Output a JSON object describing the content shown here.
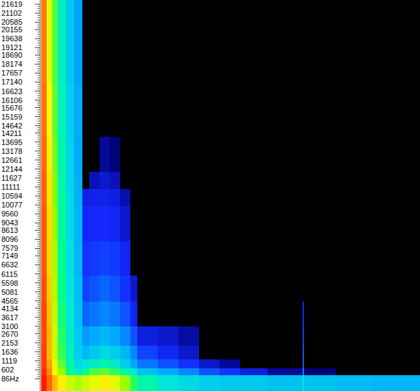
{
  "chart_data": {
    "type": "heatmap",
    "tick_labels": "y",
    "xlim": [
      0,
      552
    ],
    "ylim": [
      -620,
      21860
    ],
    "yticks": [
      21619,
      21102,
      20585,
      20155,
      19638,
      19121,
      18690,
      18174,
      17657,
      17140,
      16623,
      16106,
      15676,
      15159,
      14642,
      14211,
      13695,
      13178,
      12661,
      12144,
      11627,
      11111,
      10594,
      10077,
      9560,
      9043,
      8613,
      8096,
      7579,
      7149,
      6632,
      6115,
      5598,
      5081,
      4565,
      4134,
      3617,
      3100,
      2670,
      2153,
      1636,
      1119,
      602,
      {
        "value": 86,
        "label": "86Hz"
      }
    ],
    "x_bins": [
      0,
      8,
      16,
      24,
      36,
      48,
      60,
      70,
      85,
      100,
      115,
      130,
      140,
      170,
      200,
      230,
      260,
      290,
      330,
      381,
      383,
      430,
      480,
      552
    ],
    "y_bins": [
      -620,
      300,
      700,
      1200,
      2000,
      3100,
      4500,
      6000,
      8000,
      10000,
      11000,
      12000,
      14000,
      17000,
      21860
    ],
    "color_range": [
      0,
      1
    ],
    "cells": [
      [
        0.97,
        0.88,
        0.8,
        0.75,
        0.7,
        0.68,
        0.7,
        0.72,
        0.75,
        0.72,
        0.66,
        0.6,
        0.55,
        0.5,
        0.48,
        0.46,
        0.45,
        0.45,
        0.44,
        0.5,
        0.44,
        0.43,
        0.42
      ],
      [
        0.95,
        0.84,
        0.74,
        0.66,
        0.58,
        0.52,
        0.58,
        0.62,
        0.63,
        0.6,
        0.55,
        0.5,
        0.44,
        0.4,
        0.36,
        0.3,
        0.26,
        0.22,
        0.15,
        0.35,
        0.12,
        0,
        0
      ],
      [
        0.93,
        0.82,
        0.72,
        0.63,
        0.55,
        0.48,
        0.5,
        0.52,
        0.55,
        0.52,
        0.46,
        0.4,
        0.34,
        0.3,
        0.26,
        0.2,
        0.15,
        0,
        0,
        0.3,
        0,
        0,
        0
      ],
      [
        0.93,
        0.8,
        0.7,
        0.61,
        0.53,
        0.46,
        0.42,
        0.45,
        0.48,
        0.46,
        0.42,
        0.36,
        0.28,
        0.24,
        0.2,
        0,
        0,
        0,
        0,
        0.3,
        0,
        0,
        0
      ],
      [
        0.92,
        0.8,
        0.7,
        0.6,
        0.52,
        0.45,
        0.38,
        0.4,
        0.42,
        0.4,
        0.36,
        0.3,
        0.22,
        0.2,
        0.16,
        0,
        0,
        0,
        0,
        0.28,
        0,
        0,
        0
      ],
      [
        0.92,
        0.79,
        0.69,
        0.59,
        0.51,
        0.44,
        0.32,
        0.34,
        0.36,
        0.34,
        0.3,
        0.24,
        0,
        0,
        0,
        0,
        0,
        0,
        0,
        0.25,
        0,
        0,
        0
      ],
      [
        0.91,
        0.78,
        0.68,
        0.58,
        0.5,
        0.43,
        0.28,
        0.3,
        0.32,
        0.3,
        0.26,
        0.2,
        0,
        0,
        0,
        0,
        0,
        0,
        0,
        0,
        0,
        0,
        0
      ],
      [
        0.9,
        0.77,
        0.67,
        0.57,
        0.49,
        0.42,
        0.26,
        0.27,
        0.28,
        0.27,
        0.24,
        0,
        0,
        0,
        0,
        0,
        0,
        0,
        0,
        0,
        0,
        0,
        0
      ],
      [
        0.9,
        0.77,
        0.66,
        0.56,
        0.48,
        0.42,
        0.24,
        0.25,
        0.25,
        0.24,
        0.2,
        0,
        0,
        0,
        0,
        0,
        0,
        0,
        0,
        0,
        0,
        0,
        0
      ],
      [
        0.89,
        0.76,
        0.65,
        0.56,
        0.48,
        0.41,
        0.22,
        0.23,
        0.23,
        0.22,
        0.17,
        0,
        0,
        0,
        0,
        0,
        0,
        0,
        0,
        0,
        0,
        0,
        0
      ],
      [
        0.89,
        0.76,
        0.65,
        0.55,
        0.47,
        0.41,
        0,
        0.18,
        0.2,
        0.18,
        0,
        0,
        0,
        0,
        0,
        0,
        0,
        0,
        0,
        0,
        0,
        0,
        0
      ],
      [
        0.88,
        0.75,
        0.64,
        0.55,
        0.47,
        0.4,
        0,
        0,
        0.15,
        0.12,
        0,
        0,
        0,
        0,
        0,
        0,
        0,
        0,
        0,
        0,
        0,
        0,
        0
      ],
      [
        0.87,
        0.74,
        0.63,
        0.54,
        0.46,
        0.4,
        0,
        0,
        0,
        0,
        0,
        0,
        0,
        0,
        0,
        0,
        0,
        0,
        0,
        0,
        0,
        0,
        0
      ],
      [
        0.86,
        0.72,
        0.62,
        0.53,
        0.45,
        0.39,
        0,
        0,
        0,
        0,
        0,
        0,
        0,
        0,
        0,
        0,
        0,
        0,
        0,
        0,
        0,
        0,
        0
      ]
    ]
  }
}
